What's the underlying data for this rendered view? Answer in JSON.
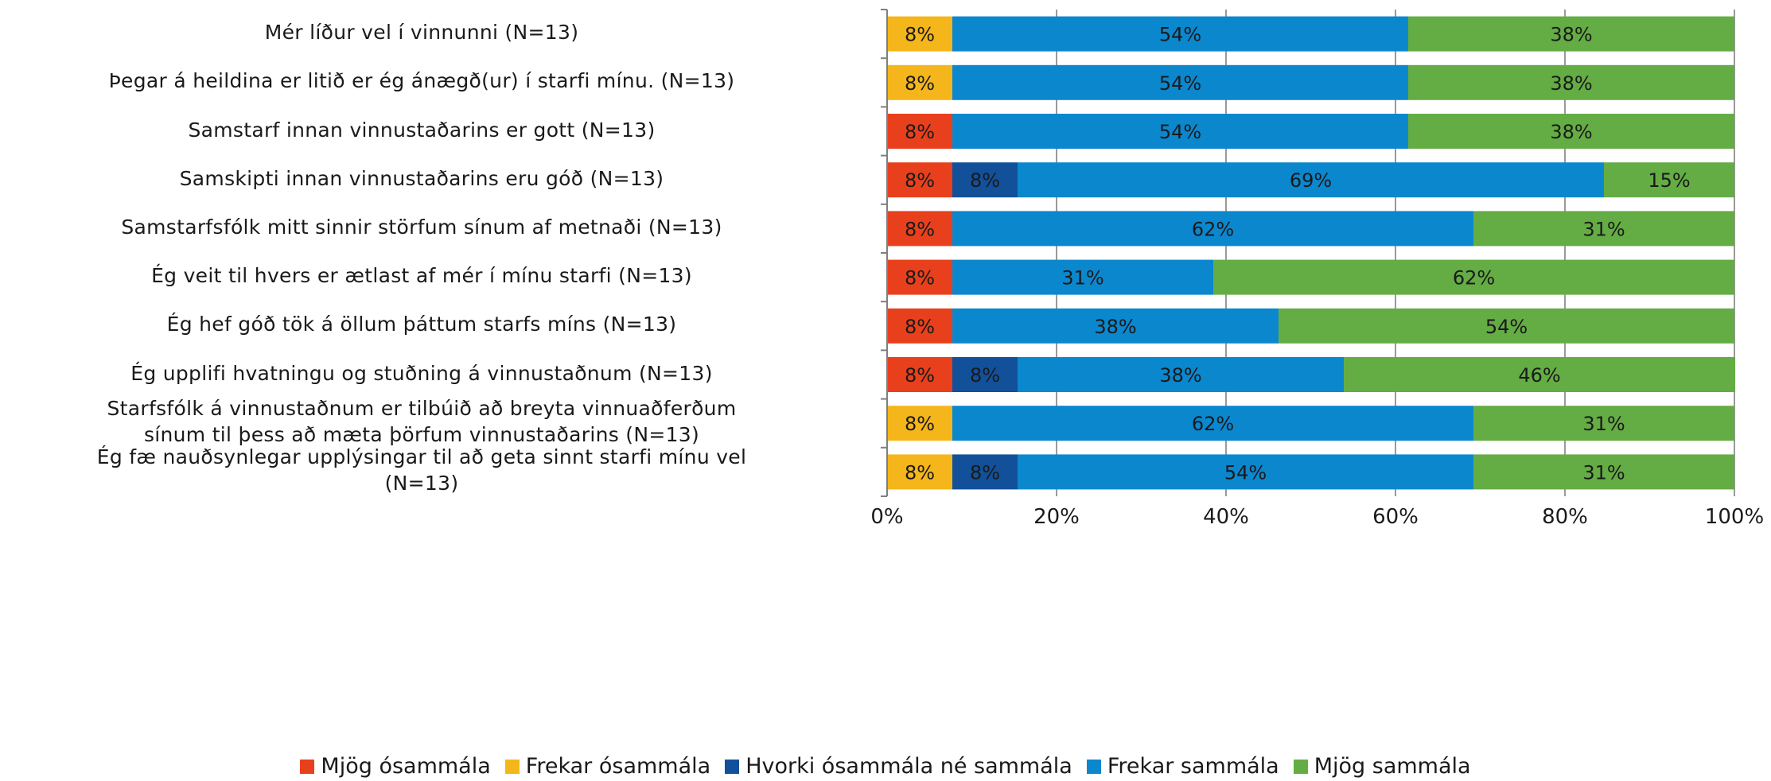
{
  "chart_data": {
    "type": "bar",
    "orientation": "horizontal",
    "stacked": true,
    "categories": [
      "Mér líður vel í vinnunni (N=13)",
      "Þegar á heildina er litið er ég ánægð(ur) í starfi mínu. (N=13)",
      "Samstarf innan vinnustaðarins er gott (N=13)",
      "Samskipti innan vinnustaðarins eru góð (N=13)",
      "Samstarfsfólk mitt sinnir störfum sínum af metnaði (N=13)",
      "Ég veit til hvers er ætlast af mér í mínu starfi (N=13)",
      "Ég hef góð tök á öllum þáttum starfs míns (N=13)",
      "Ég upplifi hvatningu og stuðning á vinnustaðnum (N=13)",
      "Starfsfólk á vinnustaðnum er tilbúið að breyta vinnuaðferðum\nsínum til þess að mæta þörfum vinnustaðarins (N=13)",
      "Ég fæ nauðsynlegar upplýsingar til að geta sinnt starfi mínu vel\n(N=13)"
    ],
    "series": [
      {
        "name": "Mjög ósammála",
        "color": "#E8401C",
        "values": [
          0,
          0,
          7.7,
          7.7,
          7.7,
          7.7,
          7.7,
          7.7,
          0,
          0
        ]
      },
      {
        "name": "Frekar ósammála",
        "color": "#F5B61B",
        "values": [
          7.7,
          7.7,
          0,
          0,
          0,
          0,
          0,
          0,
          7.7,
          7.7
        ]
      },
      {
        "name": "Hvorki ósammála né sammála",
        "color": "#12509A",
        "values": [
          0,
          0,
          0,
          7.7,
          0,
          0,
          0,
          7.7,
          0,
          7.7
        ]
      },
      {
        "name": "Frekar sammála",
        "color": "#0B87CE",
        "values": [
          53.8,
          53.8,
          53.8,
          69.2,
          61.5,
          30.8,
          38.5,
          38.5,
          61.5,
          53.8
        ]
      },
      {
        "name": "Mjög sammála",
        "color": "#64AC44",
        "values": [
          38.5,
          38.5,
          38.5,
          15.4,
          30.8,
          61.5,
          53.8,
          46.2,
          30.8,
          30.8
        ]
      }
    ],
    "data_labels": [
      [
        "",
        "",
        "8%",
        "8%",
        "8%",
        "8%",
        "8%",
        "8%",
        "",
        ""
      ],
      [
        "8%",
        "8%",
        "",
        "",
        "",
        "",
        "",
        "",
        "8%",
        "8%"
      ],
      [
        "",
        "",
        "",
        "8%",
        "",
        "",
        "",
        "8%",
        "",
        "8%"
      ],
      [
        "54%",
        "54%",
        "54%",
        "69%",
        "62%",
        "31%",
        "38%",
        "38%",
        "62%",
        "54%"
      ],
      [
        "38%",
        "38%",
        "38%",
        "15%",
        "31%",
        "62%",
        "54%",
        "46%",
        "31%",
        "31%"
      ]
    ],
    "x_ticks": [
      "0%",
      "20%",
      "40%",
      "60%",
      "80%",
      "100%"
    ],
    "xlim": [
      0,
      100
    ],
    "grid": true,
    "legend_position": "bottom",
    "title": "",
    "xlabel": "",
    "ylabel": ""
  }
}
